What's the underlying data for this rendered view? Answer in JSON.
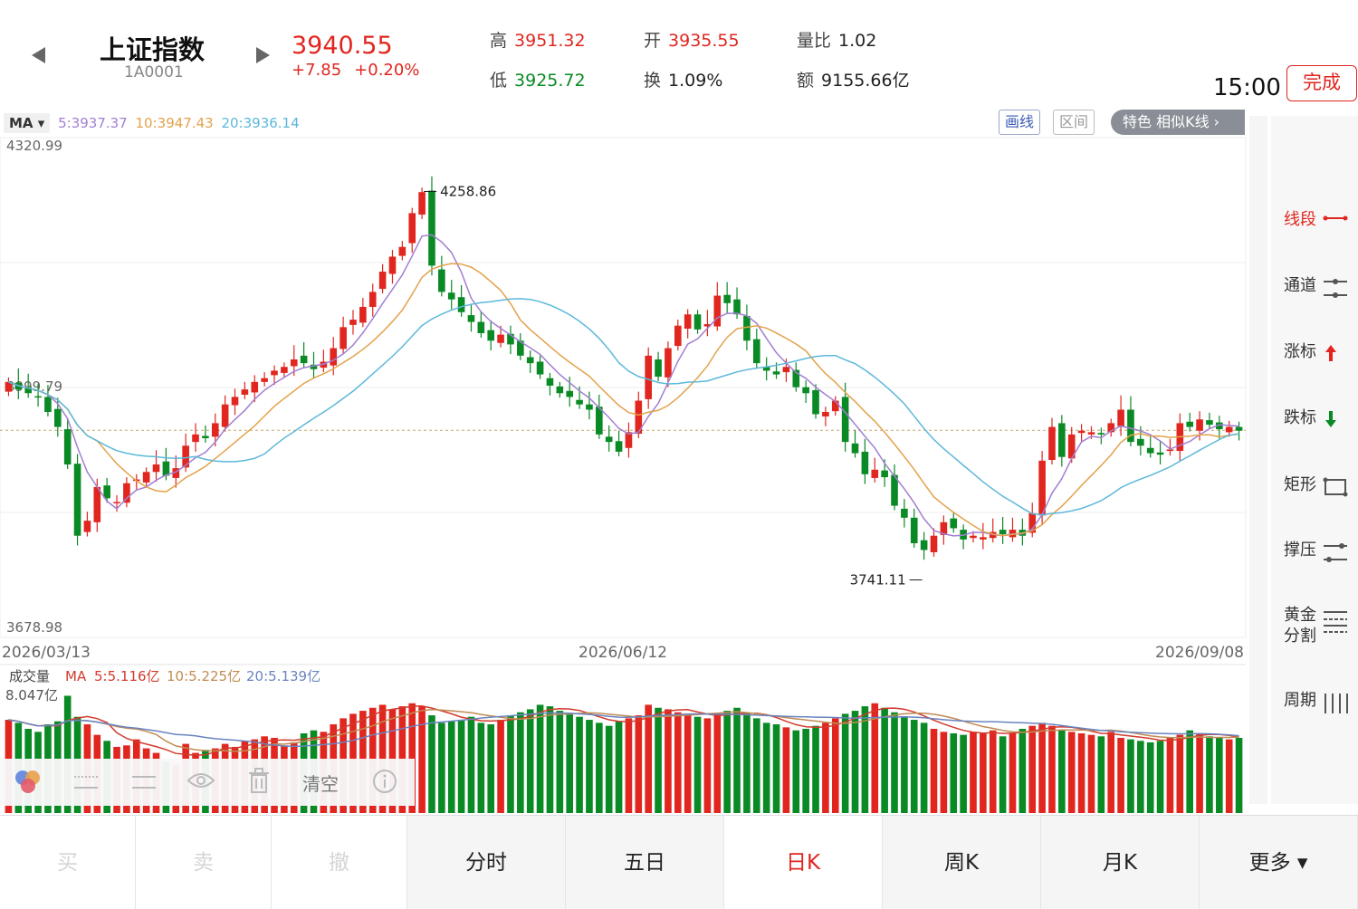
{
  "header": {
    "stock_name": "上证指数",
    "stock_code": "1A0001",
    "price": "3940.55",
    "change": "+7.85",
    "change_pct": "+0.20%",
    "high_label": "高",
    "high": "3951.32",
    "low_label": "低",
    "low": "3925.72",
    "open_label": "开",
    "open": "3935.55",
    "turnover_label": "换",
    "turnover": "1.09%",
    "vol_ratio_label": "量比",
    "vol_ratio": "1.02",
    "amount_label": "额",
    "amount": "9155.66亿",
    "time": "15:00",
    "done_label": "完成"
  },
  "ma_bar": {
    "tag": "MA",
    "ma5": "5:3937.37",
    "ma10": "10:3947.43",
    "ma20": "20:3936.14"
  },
  "top_tools": {
    "draw": "画线",
    "range": "区间",
    "feature": "特色  相似K线 ›"
  },
  "colors": {
    "up": "#e0261f",
    "down": "#0a8a25",
    "ma5": "#a27fd3",
    "ma10": "#e3a24b",
    "ma20": "#5cb8da",
    "vol_ma5": "#d23b2c",
    "vol_ma10": "#c08b53",
    "vol_ma20": "#6a84c0"
  },
  "side_tools": [
    {
      "label": "线段",
      "icon": "segment-icon",
      "active": true
    },
    {
      "label": "通道",
      "icon": "channel-icon"
    },
    {
      "label": "涨标",
      "icon": "up-arrow-icon"
    },
    {
      "label": "跌标",
      "icon": "down-arrow-icon"
    },
    {
      "label": "矩形",
      "icon": "rectangle-icon"
    },
    {
      "label": "撑压",
      "icon": "support-resistance-icon"
    },
    {
      "label": "黄金\n分割",
      "icon": "golden-section-icon"
    },
    {
      "label": "周期",
      "icon": "cycle-icon"
    }
  ],
  "draw_strip": {
    "clear": "清空",
    "icons": [
      "color-palette-icon",
      "dotted-line-icon",
      "solid-line-icon",
      "eye-icon",
      "trash-icon",
      "info-icon"
    ]
  },
  "tabs": [
    {
      "label": "买",
      "state": "dim"
    },
    {
      "label": "卖",
      "state": "dim"
    },
    {
      "label": "撤",
      "state": "dim"
    },
    {
      "label": "分时",
      "state": "norm"
    },
    {
      "label": "五日",
      "state": "norm"
    },
    {
      "label": "日K",
      "state": "active"
    },
    {
      "label": "周K",
      "state": "norm"
    },
    {
      "label": "月K",
      "state": "norm"
    },
    {
      "label": "更多 ▾",
      "state": "norm"
    }
  ],
  "chart_data": {
    "type": "candlestick",
    "y_max_label": "4320.99",
    "y_mid_label": "3999.79",
    "y_min_label": "3678.98",
    "ylim": [
      3678.98,
      4320.99
    ],
    "dates": [
      "2026/03/13",
      "2026/06/12",
      "2026/09/08"
    ],
    "last_close_ref": 3940.55,
    "high_mark": "4258.86",
    "low_mark": "3741.11",
    "volume_title": "成交量",
    "volume_ma_label": "MA",
    "volume_ma5": "5:5.116亿",
    "volume_ma10": "10:5.225亿",
    "volume_ma20": "20:5.139亿",
    "volume_max_label": "8.047亿",
    "closes": [
      4005,
      3995,
      3990,
      3985,
      3965,
      3945,
      3895,
      3800,
      3820,
      3865,
      3850,
      3845,
      3870,
      3875,
      3885,
      3895,
      3880,
      3890,
      3920,
      3935,
      3930,
      3950,
      3975,
      3985,
      3995,
      4005,
      4010,
      4020,
      4025,
      4035,
      4030,
      4022,
      4032,
      4050,
      4078,
      4088,
      4105,
      4125,
      4152,
      4172,
      4185,
      4230,
      4258,
      4160,
      4125,
      4115,
      4098,
      4085,
      4070,
      4060,
      4068,
      4055,
      4040,
      4030,
      4015,
      4000,
      3990,
      3985,
      3975,
      3968,
      3935,
      3925,
      3912,
      3938,
      3980,
      4040,
      4012,
      4050,
      4080,
      4095,
      4075,
      4082,
      4120,
      4110,
      4095,
      4060,
      4030,
      4020,
      4015,
      4025,
      3998,
      3990,
      3962,
      3965,
      3980,
      3925,
      3910,
      3882,
      3888,
      3878,
      3840,
      3824,
      3790,
      3781,
      3800,
      3818,
      3810,
      3795,
      3800,
      3798,
      3805,
      3802,
      3808,
      3800,
      3830,
      3900,
      3945,
      3905,
      3935,
      3940,
      3938,
      3935,
      3950,
      3968,
      3925,
      3920,
      3910,
      3908,
      3915,
      3950,
      3945,
      3955,
      3948,
      3942,
      3945,
      3940
    ],
    "volumes": [
      6.2,
      6.0,
      5.6,
      5.4,
      5.9,
      6.1,
      7.8,
      6.4,
      5.9,
      5.2,
      4.8,
      4.4,
      4.5,
      4.9,
      4.3,
      4.0,
      3.4,
      3.2,
      4.6,
      4.0,
      4.2,
      4.3,
      4.6,
      4.4,
      4.8,
      4.9,
      5.1,
      5.0,
      4.5,
      4.7,
      5.3,
      5.5,
      5.4,
      5.9,
      6.3,
      6.6,
      6.8,
      7.0,
      7.2,
      6.9,
      7.1,
      7.3,
      7.1,
      6.5,
      6.0,
      6.1,
      6.2,
      6.4,
      6.0,
      5.9,
      6.2,
      6.5,
      6.7,
      6.9,
      7.2,
      7.1,
      6.8,
      6.6,
      6.4,
      6.2,
      6.0,
      5.8,
      6.1,
      6.3,
      6.5,
      7.2,
      7.0,
      6.9,
      6.7,
      6.6,
      6.4,
      6.3,
      6.5,
      6.8,
      7.0,
      6.6,
      6.3,
      6.0,
      5.9,
      5.7,
      5.5,
      5.6,
      5.8,
      6.0,
      6.3,
      6.6,
      6.8,
      7.1,
      7.3,
      7.0,
      6.7,
      6.4,
      6.2,
      6.0,
      5.6,
      5.4,
      5.3,
      5.2,
      5.4,
      5.3,
      5.5,
      5.1,
      5.3,
      5.6,
      5.8,
      6.0,
      5.8,
      5.5,
      5.4,
      5.3,
      5.2,
      5.1,
      5.4,
      5.0,
      4.9,
      4.8,
      4.7,
      4.8,
      5.0,
      5.2,
      5.5,
      5.3,
      5.1,
      5.0,
      4.9,
      5.0
    ]
  }
}
